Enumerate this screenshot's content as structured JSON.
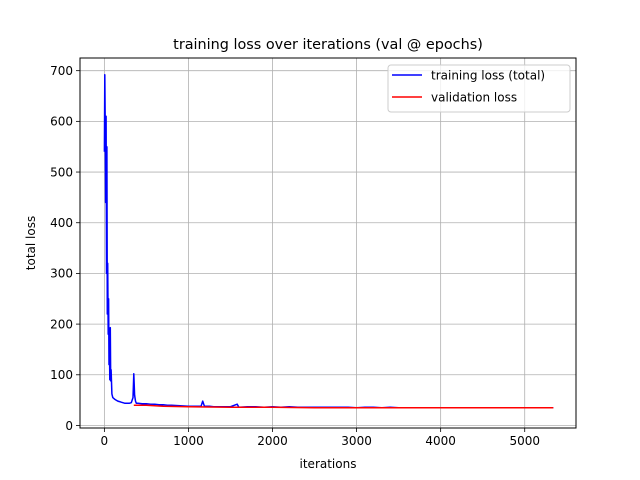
{
  "chart_data": {
    "type": "line",
    "title": "training loss over iterations (val @ epochs)",
    "xlabel": "iterations",
    "ylabel": "total loss",
    "xlim": [
      -290,
      5610
    ],
    "ylim": [
      -5,
      725
    ],
    "xticks": [
      0,
      1000,
      2000,
      3000,
      4000,
      5000
    ],
    "xtick_labels": [
      "0",
      "1000",
      "2000",
      "3000",
      "4000",
      "5000"
    ],
    "yticks": [
      0,
      100,
      200,
      300,
      400,
      500,
      600,
      700
    ],
    "ytick_labels": [
      "0",
      "100",
      "200",
      "300",
      "400",
      "500",
      "600",
      "700"
    ],
    "grid": true,
    "legend_position": "top-right",
    "series": [
      {
        "name": "training loss (total)",
        "color": "#0000ff",
        "x": [
          0,
          5,
          10,
          15,
          20,
          25,
          30,
          35,
          40,
          45,
          50,
          55,
          60,
          65,
          70,
          75,
          80,
          90,
          100,
          120,
          140,
          160,
          180,
          200,
          220,
          240,
          260,
          280,
          300,
          320,
          340,
          350,
          360,
          370,
          380,
          400,
          450,
          500,
          550,
          600,
          650,
          700,
          750,
          800,
          900,
          1000,
          1100,
          1150,
          1170,
          1190,
          1250,
          1300,
          1400,
          1500,
          1580,
          1600,
          1700,
          1800,
          1900,
          2000,
          2100,
          2200,
          2300,
          2400,
          2500,
          2600,
          2700,
          2800,
          2900,
          3000,
          3100,
          3200,
          3300,
          3400,
          3500,
          3600,
          3700,
          3800,
          3900,
          4000,
          4100,
          4200,
          4300,
          4400,
          4500,
          4600,
          4700,
          4800,
          4900,
          5000,
          5100,
          5200,
          5300,
          5340
        ],
        "y": [
          540,
          692,
          600,
          440,
          610,
          300,
          550,
          220,
          320,
          180,
          250,
          120,
          170,
          90,
          193,
          88,
          110,
          62,
          55,
          52,
          50,
          48,
          47,
          46,
          45,
          44,
          44,
          44,
          44,
          45,
          55,
          102,
          60,
          48,
          44,
          44,
          43,
          43,
          42,
          42,
          41,
          41,
          40,
          40,
          39,
          38,
          38,
          38,
          48,
          38,
          38,
          37,
          37,
          37,
          42,
          36,
          37,
          37,
          36,
          37,
          36,
          37,
          36,
          36,
          36,
          36,
          36,
          36,
          36,
          35,
          36,
          36,
          35,
          36,
          35,
          35,
          35,
          35,
          35,
          35,
          35,
          35,
          35,
          35,
          35,
          35,
          35,
          35,
          35,
          35,
          35,
          35,
          35,
          35
        ]
      },
      {
        "name": "validation loss",
        "color": "#ff0000",
        "x": [
          350,
          500,
          700,
          1000,
          1500,
          2000,
          2500,
          3000,
          3500,
          4000,
          4500,
          5000,
          5340
        ],
        "y": [
          40,
          40,
          38,
          37,
          36,
          36,
          35,
          35,
          35,
          35,
          35,
          35,
          35
        ]
      }
    ]
  }
}
